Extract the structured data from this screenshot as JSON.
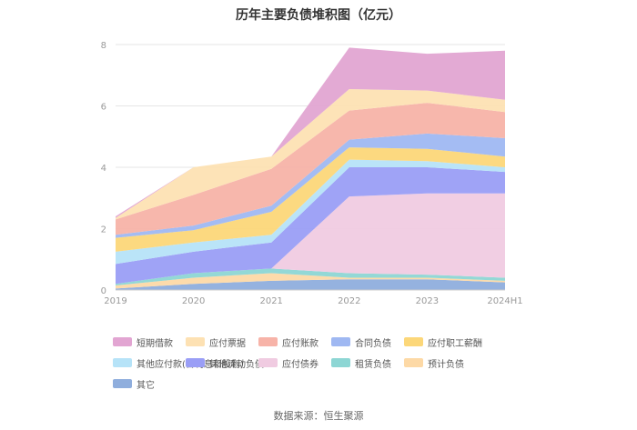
{
  "chart_data": {
    "type": "area",
    "stacked": true,
    "title": "历年主要负债堆积图（亿元）",
    "categories": [
      "2019",
      "2020",
      "2021",
      "2022",
      "2023",
      "2024H1"
    ],
    "ylim": [
      0,
      8
    ],
    "yticks": [
      "0",
      "2",
      "4",
      "6",
      "8"
    ],
    "grid": true,
    "legend_position": "bottom",
    "series": [
      {
        "name": "其它",
        "color": "#8faedd",
        "values": [
          0.05,
          0.2,
          0.3,
          0.35,
          0.35,
          0.25
        ]
      },
      {
        "name": "预计负债",
        "color": "#fdd9a6",
        "values": [
          0.1,
          0.2,
          0.25,
          0.05,
          0.05,
          0.05
        ]
      },
      {
        "name": "租赁负债",
        "color": "#8dd6d4",
        "values": [
          0.05,
          0.15,
          0.15,
          0.15,
          0.1,
          0.1
        ]
      },
      {
        "name": "应付债券",
        "color": "#f0cbe1",
        "values": [
          0,
          0,
          0,
          2.5,
          2.65,
          2.75
        ]
      },
      {
        "name": "其他流动负债",
        "color": "#9a9ef6",
        "values": [
          0.65,
          0.7,
          0.85,
          0.95,
          0.85,
          0.7
        ]
      },
      {
        "name": "其他应付款(含利息和股利)",
        "color": "#b6e3f8",
        "values": [
          0.4,
          0.3,
          0.25,
          0.25,
          0.2,
          0.15
        ]
      },
      {
        "name": "应付职工薪酬",
        "color": "#fcd779",
        "values": [
          0.45,
          0.4,
          0.75,
          0.4,
          0.4,
          0.35
        ]
      },
      {
        "name": "合同负债",
        "color": "#9fb8f2",
        "values": [
          0.1,
          0.15,
          0.2,
          0.25,
          0.5,
          0.6
        ]
      },
      {
        "name": "应付账款",
        "color": "#f7b3a8",
        "values": [
          0.5,
          1.0,
          1.2,
          0.95,
          1.0,
          0.85
        ]
      },
      {
        "name": "应付票据",
        "color": "#fde1b3",
        "values": [
          0.05,
          0.9,
          0.4,
          0.7,
          0.4,
          0.4
        ]
      },
      {
        "name": "短期借款",
        "color": "#e2a5d2",
        "values": [
          0.05,
          0,
          0,
          1.35,
          1.2,
          1.6
        ]
      }
    ],
    "legend_order": [
      "短期借款",
      "应付票据",
      "应付账款",
      "合同负债",
      "应付职工薪酬",
      "其他应付款(含利息和股利)",
      "其他流动负债",
      "应付债券",
      "租赁负债",
      "预计负债",
      "其它"
    ]
  },
  "footer": {
    "source": "数据来源：恒生聚源"
  }
}
